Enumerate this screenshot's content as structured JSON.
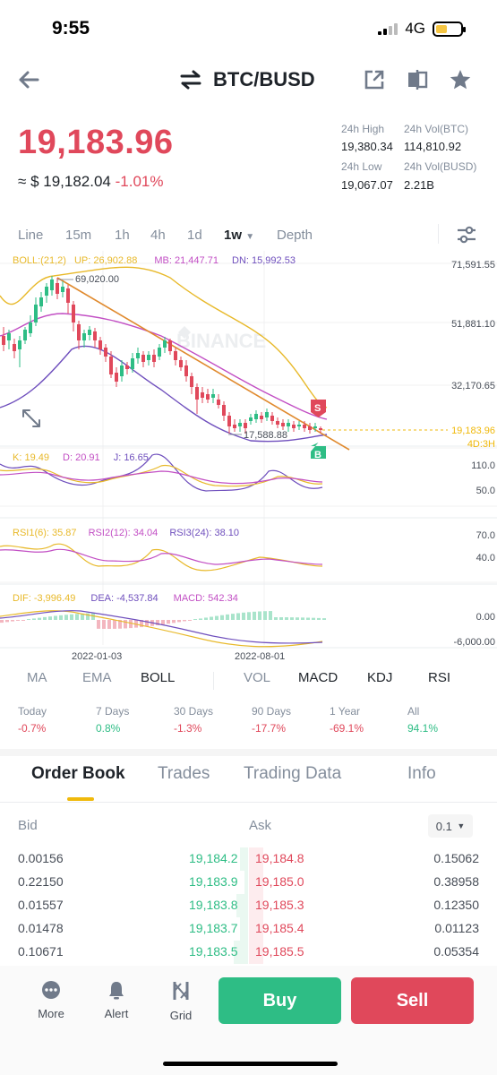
{
  "status_bar": {
    "time": "9:55",
    "network": "4G"
  },
  "header": {
    "pair": "BTC/BUSD"
  },
  "price": {
    "last": "19,183.96",
    "approx_prefix": "≈",
    "usd": "$ 19,182.04",
    "change": "-1.01%",
    "stats": [
      {
        "label": "24h High",
        "value": "19,380.34"
      },
      {
        "label": "24h Vol(BTC)",
        "value": "114,810.92"
      },
      {
        "label": "24h Low",
        "value": "19,067.07"
      },
      {
        "label": "24h Vol(BUSD)",
        "value": "2.21B"
      }
    ]
  },
  "intervals": [
    "Line",
    "15m",
    "1h",
    "4h",
    "1d",
    "1w",
    "Depth"
  ],
  "active_interval": "1w",
  "chart": {
    "boll": {
      "label": "BOLL:(21,2)",
      "up": "UP: 26,902.88",
      "mb": "MB: 21,447.71",
      "dn": "DN: 15,992.53"
    },
    "y_labels": [
      "71,591.55",
      "51,881.10",
      "32,170.65"
    ],
    "last_price_label": "19,183.96",
    "countdown": "4D:3H",
    "high_annotation": "69,020.00",
    "low_annotation": "17,588.88",
    "watermark": "BINANCE",
    "sell_marker": "S",
    "buy_marker": "B",
    "kdj": {
      "k": "K: 19.49",
      "d": "D: 20.91",
      "j": "J: 16.65",
      "y_labels": [
        "110.0",
        "50.0"
      ]
    },
    "rsi": {
      "r1": "RSI1(6): 35.87",
      "r2": "RSI2(12): 34.04",
      "r3": "RSI3(24): 38.10",
      "y_labels": [
        "70.0",
        "40.0"
      ]
    },
    "macd": {
      "dif": "DIF: -3,996.49",
      "dea": "DEA: -4,537.84",
      "macd": "MACD: 542.34",
      "y_labels": [
        "0.00",
        "-6,000.00"
      ]
    },
    "x_labels": [
      "2022-01-03",
      "2022-08-01"
    ],
    "colors": {
      "up": "#2ebd85",
      "down": "#e0485b",
      "boll_up": "#e8b92a",
      "boll_mb": "#c24fc4",
      "boll_dn": "#6f4fbd",
      "trend": "#e08a2e"
    }
  },
  "indicator_tabs": [
    "MA",
    "EMA",
    "BOLL",
    "VOL",
    "MACD",
    "KDJ",
    "RSI"
  ],
  "performance": [
    {
      "label": "Today",
      "value": "-0.7%",
      "dir": "down"
    },
    {
      "label": "7 Days",
      "value": "0.8%",
      "dir": "up"
    },
    {
      "label": "30 Days",
      "value": "-1.3%",
      "dir": "down"
    },
    {
      "label": "90 Days",
      "value": "-17.7%",
      "dir": "down"
    },
    {
      "label": "1 Year",
      "value": "-69.1%",
      "dir": "down"
    },
    {
      "label": "All",
      "value": "94.1%",
      "dir": "up"
    }
  ],
  "order_tabs": [
    "Order Book",
    "Trades",
    "Trading Data",
    "Info"
  ],
  "order_book": {
    "bid_label": "Bid",
    "ask_label": "Ask",
    "precision": "0.1",
    "rows": [
      {
        "bid_qty": "0.00156",
        "bid_price": "19,184.2",
        "ask_price": "19,184.8",
        "ask_qty": "0.15062"
      },
      {
        "bid_qty": "0.22150",
        "bid_price": "19,183.9",
        "ask_price": "19,185.0",
        "ask_qty": "0.38958"
      },
      {
        "bid_qty": "0.01557",
        "bid_price": "19,183.8",
        "ask_price": "19,185.3",
        "ask_qty": "0.12350"
      },
      {
        "bid_qty": "0.01478",
        "bid_price": "19,183.7",
        "ask_price": "19,185.4",
        "ask_qty": "0.01123"
      },
      {
        "bid_qty": "0.10671",
        "bid_price": "19,183.5",
        "ask_price": "19,185.5",
        "ask_qty": "0.05354"
      }
    ]
  },
  "bottom_nav": {
    "more": "More",
    "alert": "Alert",
    "grid": "Grid",
    "buy": "Buy",
    "sell": "Sell"
  }
}
